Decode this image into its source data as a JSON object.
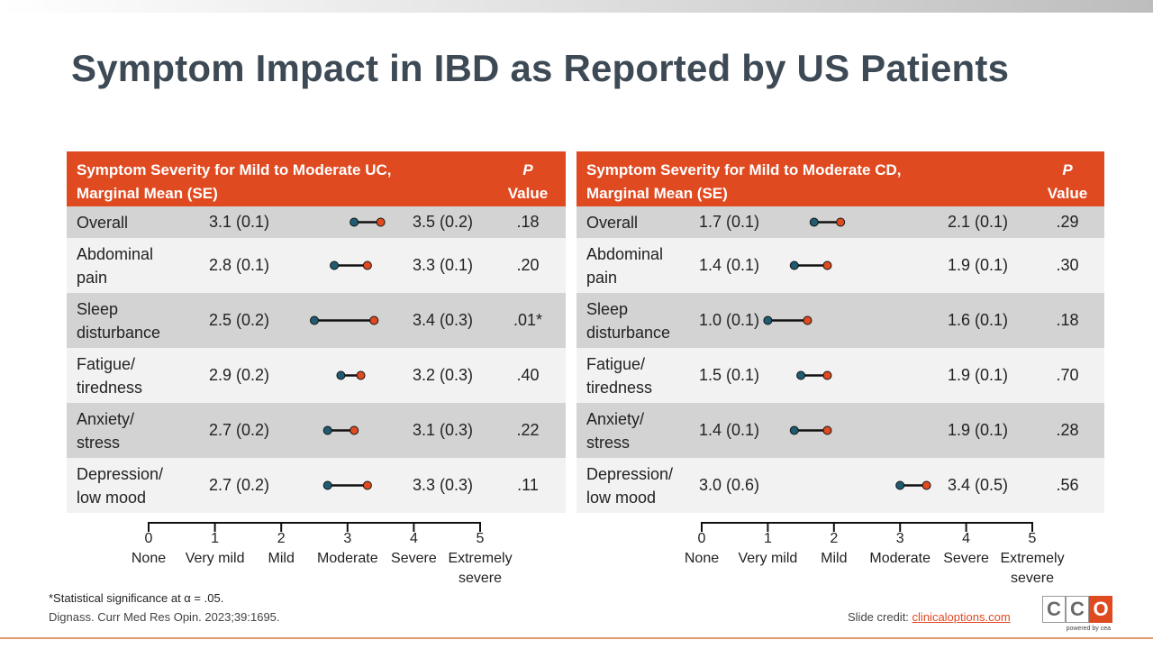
{
  "title": "Symptom Impact in IBD as Reported by US Patients",
  "colors": {
    "header": "#e04a21",
    "mild_dot": "#1f5c72",
    "moderate_dot": "#e04a21"
  },
  "chart_data": [
    {
      "type": "dumbbell",
      "header_label_line1": "Symptom Severity for Mild to Moderate UC,",
      "header_label_line2": "Marginal Mean (SE)",
      "p_header_line1": "P",
      "p_header_line2": "Value",
      "xlim": [
        0,
        5
      ],
      "ticks": [
        "0",
        "1",
        "2",
        "3",
        "4",
        "5"
      ],
      "tick_labels": [
        "None",
        "Very mild",
        "Mild",
        "Moderate",
        "Severe",
        "Extremely severe"
      ],
      "rows": [
        {
          "label": [
            "Overall"
          ],
          "mild_text": "3.1 (0.1)",
          "mod_text": "3.5 (0.2)",
          "p": ".18",
          "mild": 3.1,
          "moderate": 3.5
        },
        {
          "label": [
            "Abdominal",
            "pain"
          ],
          "mild_text": "2.8 (0.1)",
          "mod_text": "3.3 (0.1)",
          "p": ".20",
          "mild": 2.8,
          "moderate": 3.3
        },
        {
          "label": [
            "Sleep",
            "disturbance"
          ],
          "mild_text": "2.5 (0.2)",
          "mod_text": "3.4 (0.3)",
          "p": ".01*",
          "mild": 2.5,
          "moderate": 3.4
        },
        {
          "label": [
            "Fatigue/",
            "tiredness"
          ],
          "mild_text": "2.9 (0.2)",
          "mod_text": "3.2 (0.3)",
          "p": ".40",
          "mild": 2.9,
          "moderate": 3.2
        },
        {
          "label": [
            "Anxiety/",
            "stress"
          ],
          "mild_text": "2.7 (0.2)",
          "mod_text": "3.1 (0.3)",
          "p": ".22",
          "mild": 2.7,
          "moderate": 3.1
        },
        {
          "label": [
            "Depression/",
            "low mood"
          ],
          "mild_text": "2.7 (0.2)",
          "mod_text": "3.3 (0.3)",
          "p": ".11",
          "mild": 2.7,
          "moderate": 3.3
        }
      ]
    },
    {
      "type": "dumbbell",
      "header_label_line1": "Symptom Severity for Mild to Moderate CD,",
      "header_label_line2": "Marginal Mean (SE)",
      "p_header_line1": "P",
      "p_header_line2": "Value",
      "xlim": [
        0,
        5
      ],
      "ticks": [
        "0",
        "1",
        "2",
        "3",
        "4",
        "5"
      ],
      "tick_labels": [
        "None",
        "Very mild",
        "Mild",
        "Moderate",
        "Severe",
        "Extremely severe"
      ],
      "rows": [
        {
          "label": [
            "Overall"
          ],
          "mild_text": "1.7 (0.1)",
          "mod_text": "2.1 (0.1)",
          "p": ".29",
          "mild": 1.7,
          "moderate": 2.1
        },
        {
          "label": [
            "Abdominal",
            "pain"
          ],
          "mild_text": "1.4 (0.1)",
          "mod_text": "1.9 (0.1)",
          "p": ".30",
          "mild": 1.4,
          "moderate": 1.9
        },
        {
          "label": [
            "Sleep",
            "disturbance"
          ],
          "mild_text": "1.0 (0.1)",
          "mod_text": "1.6 (0.1)",
          "p": ".18",
          "mild": 1.0,
          "moderate": 1.6
        },
        {
          "label": [
            "Fatigue/",
            "tiredness"
          ],
          "mild_text": "1.5 (0.1)",
          "mod_text": "1.9 (0.1)",
          "p": ".70",
          "mild": 1.5,
          "moderate": 1.9
        },
        {
          "label": [
            "Anxiety/",
            "stress"
          ],
          "mild_text": "1.4 (0.1)",
          "mod_text": "1.9 (0.1)",
          "p": ".28",
          "mild": 1.4,
          "moderate": 1.9
        },
        {
          "label": [
            "Depression/",
            "low mood"
          ],
          "mild_text": "3.0 (0.6)",
          "mod_text": "3.4 (0.5)",
          "p": ".56",
          "mild": 3.0,
          "moderate": 3.4
        }
      ]
    }
  ],
  "footnote": "*Statistical significance at α = .05.",
  "citation": "Dignass. Curr Med Res Opin. 2023;39:1695.",
  "credit_prefix": "Slide credit: ",
  "credit_link": "clinicaloptions.com",
  "logo": {
    "letters": [
      "C",
      "C",
      "O"
    ],
    "sub": "powered by cea"
  }
}
